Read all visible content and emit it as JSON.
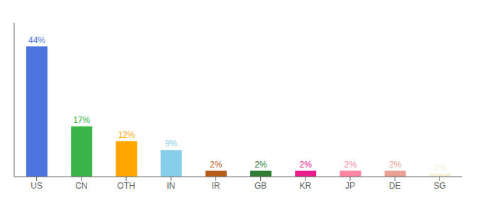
{
  "chart_data": {
    "type": "bar",
    "categories": [
      "US",
      "CN",
      "OTH",
      "IN",
      "IR",
      "GB",
      "KR",
      "JP",
      "DE",
      "SG"
    ],
    "values": [
      44,
      17,
      12,
      9,
      2,
      2,
      2,
      2,
      2,
      1
    ],
    "value_labels": [
      "44%",
      "17%",
      "12%",
      "9%",
      "2%",
      "2%",
      "2%",
      "2%",
      "2%",
      "1%"
    ],
    "colors": [
      "#4d73df",
      "#3ab54a",
      "#ffa500",
      "#87ceeb",
      "#b85c1a",
      "#2e7d32",
      "#e91e8c",
      "#ff85a2",
      "#e8a090",
      "#f5f0d8"
    ],
    "ylim": [
      0,
      52
    ],
    "data_labels": true,
    "tick_labels": "x",
    "grid": false
  }
}
